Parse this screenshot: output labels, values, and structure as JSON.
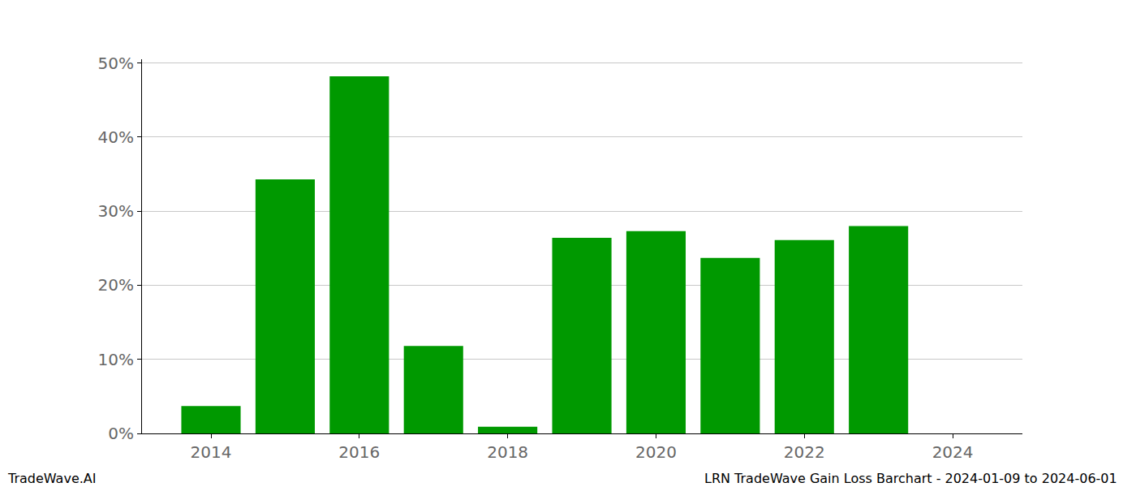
{
  "chart_data": {
    "type": "bar",
    "title": "LRN TradeWave Gain Loss Barchart - 2024-01-09 to 2024-06-01",
    "annotations": [
      "TradeWave.AI"
    ],
    "x": [
      2014,
      2015,
      2016,
      2017,
      2018,
      2019,
      2020,
      2021,
      2022,
      2023,
      2024
    ],
    "values": [
      3.7,
      34.3,
      48.2,
      11.8,
      0.9,
      26.4,
      27.3,
      23.7,
      26.1,
      28.0,
      0
    ],
    "color": "#009900",
    "xlim": [
      2013.07,
      2024.94
    ],
    "xticks": [
      2014,
      2016,
      2018,
      2020,
      2022,
      2024
    ],
    "ylim": [
      0,
      50.5
    ],
    "yticks": [
      {
        "value": 0,
        "label": "0%"
      },
      {
        "value": 10,
        "label": "10%"
      },
      {
        "value": 20,
        "label": "20%"
      },
      {
        "value": 30,
        "label": "30%"
      },
      {
        "value": 40,
        "label": "40%"
      },
      {
        "value": 50,
        "label": "50%"
      }
    ],
    "grid": true
  }
}
